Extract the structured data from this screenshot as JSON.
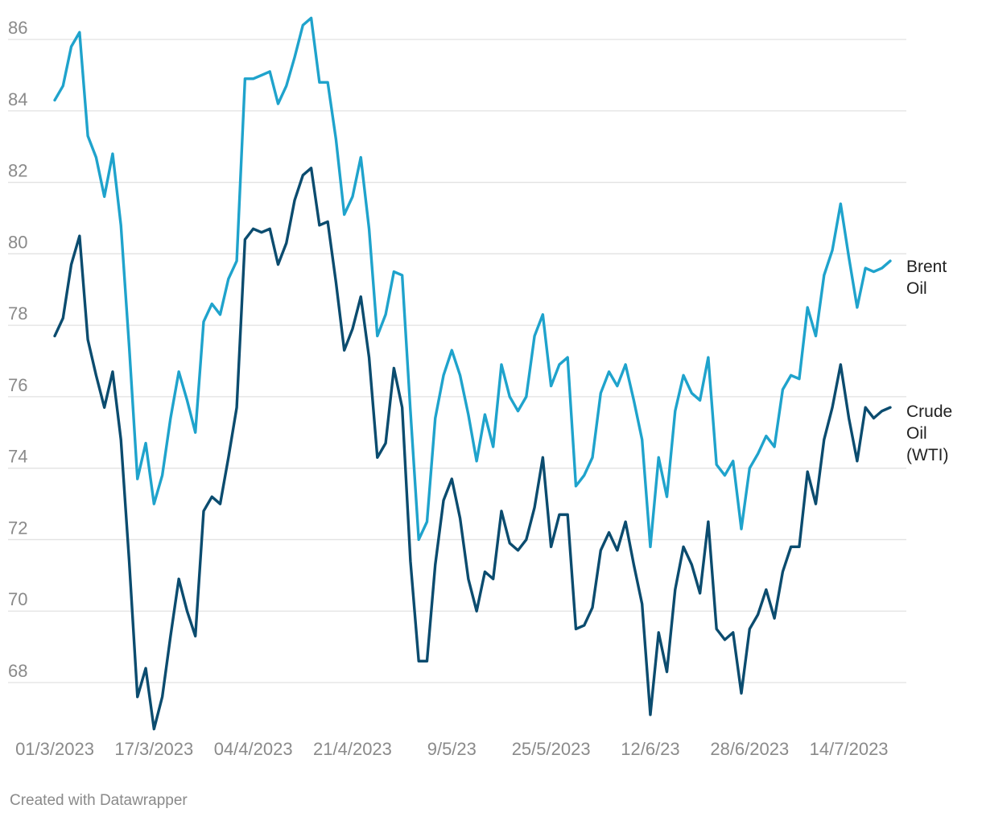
{
  "chart_data": {
    "type": "line",
    "title": "",
    "xlabel": "",
    "ylabel": "",
    "ylim": [
      67,
      86.6
    ],
    "yticks": [
      68,
      70,
      72,
      74,
      76,
      78,
      80,
      82,
      84,
      86
    ],
    "grid": true,
    "x_tick_labels": [
      {
        "label": "01/3/2023",
        "index": 0
      },
      {
        "label": "17/3/2023",
        "index": 12
      },
      {
        "label": "04/4/2023",
        "index": 24
      },
      {
        "label": "21/4/2023",
        "index": 36
      },
      {
        "label": "9/5/23",
        "index": 48
      },
      {
        "label": "25/5/2023",
        "index": 60
      },
      {
        "label": "12/6/23",
        "index": 72
      },
      {
        "label": "28/6/2023",
        "index": 84
      },
      {
        "label": "14/7/2023",
        "index": 96
      }
    ],
    "series": [
      {
        "name": "Brent Oil",
        "label_lines": [
          "Brent",
          "Oil"
        ],
        "color": "#1fa3cc",
        "values": [
          84.3,
          84.7,
          85.8,
          86.2,
          83.3,
          82.7,
          81.6,
          82.8,
          80.8,
          77.4,
          73.7,
          74.7,
          73.0,
          73.8,
          75.4,
          76.7,
          75.9,
          75.0,
          78.1,
          78.6,
          78.3,
          79.3,
          79.8,
          84.9,
          84.9,
          85.0,
          85.1,
          84.2,
          84.7,
          85.5,
          86.4,
          86.6,
          84.8,
          84.8,
          83.2,
          81.1,
          81.6,
          82.7,
          80.7,
          77.7,
          78.3,
          79.5,
          79.4,
          75.6,
          72.0,
          72.5,
          75.4,
          76.6,
          77.3,
          76.6,
          75.5,
          74.2,
          75.5,
          74.6,
          76.9,
          76.0,
          75.6,
          76.0,
          77.7,
          78.3,
          76.3,
          76.9,
          77.1,
          73.5,
          73.8,
          74.3,
          76.1,
          76.7,
          76.3,
          76.9,
          75.9,
          74.8,
          71.8,
          74.3,
          73.2,
          75.6,
          76.6,
          76.1,
          75.9,
          77.1,
          74.1,
          73.8,
          74.2,
          72.3,
          74.0,
          74.4,
          74.9,
          74.6,
          76.2,
          76.6,
          76.5,
          78.5,
          77.7,
          79.4,
          80.1,
          81.4,
          79.9,
          78.5,
          79.6,
          79.5,
          79.6,
          79.8
        ]
      },
      {
        "name": "Crude Oil (WTI)",
        "label_lines": [
          "Crude",
          "Oil",
          "(WTI)"
        ],
        "color": "#0b4c6f",
        "values": [
          77.7,
          78.2,
          79.7,
          80.5,
          77.6,
          76.6,
          75.7,
          76.7,
          74.8,
          71.4,
          67.6,
          68.4,
          66.7,
          67.6,
          69.3,
          70.9,
          70.0,
          69.3,
          72.8,
          73.2,
          73.0,
          74.3,
          75.7,
          80.4,
          80.7,
          80.6,
          80.7,
          79.7,
          80.3,
          81.5,
          82.2,
          82.4,
          80.8,
          80.9,
          79.2,
          77.3,
          77.9,
          78.8,
          77.1,
          74.3,
          74.7,
          76.8,
          75.7,
          71.4,
          68.6,
          68.6,
          71.3,
          73.1,
          73.7,
          72.6,
          70.9,
          70.0,
          71.1,
          70.9,
          72.8,
          71.9,
          71.7,
          72.0,
          72.9,
          74.3,
          71.8,
          72.7,
          72.7,
          69.5,
          69.6,
          70.1,
          71.7,
          72.2,
          71.7,
          72.5,
          71.3,
          70.2,
          67.1,
          69.4,
          68.3,
          70.6,
          71.8,
          71.3,
          70.5,
          72.5,
          69.5,
          69.2,
          69.4,
          67.7,
          69.5,
          69.9,
          70.6,
          69.8,
          71.1,
          71.8,
          71.8,
          73.9,
          73.0,
          74.8,
          75.7,
          76.9,
          75.4,
          74.2,
          75.7,
          75.4,
          75.6,
          75.7
        ]
      }
    ]
  },
  "footer": {
    "credit": "Created with Datawrapper"
  }
}
